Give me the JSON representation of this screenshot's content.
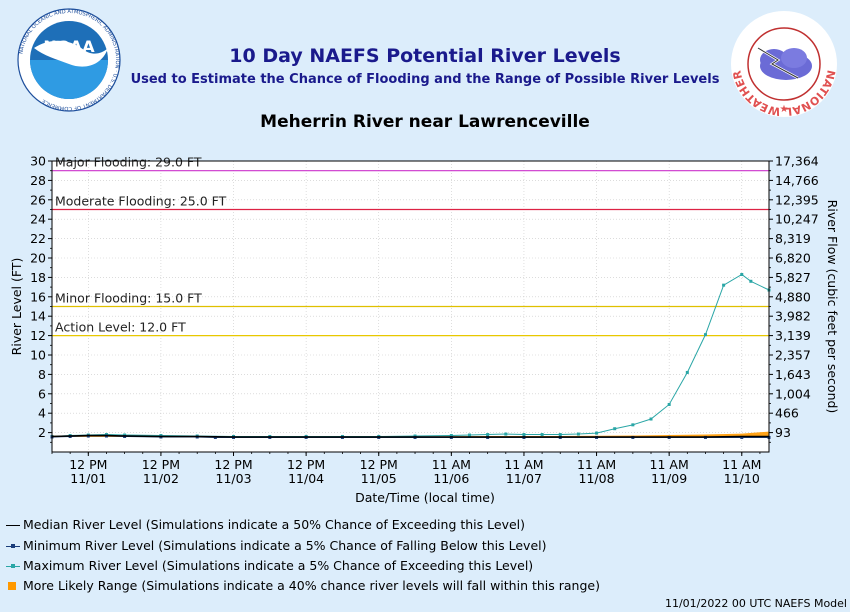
{
  "header": {
    "title": "10 Day NAEFS Potential River Levels",
    "subtitle": "Used to Estimate the Chance of Flooding and the Range of Possible River Levels",
    "gauge": "Meherrin River near Lawrenceville"
  },
  "logos": {
    "noaa": {
      "text": "NOAA",
      "ring_text": "NATIONAL OCEANIC AND ATMOSPHERIC ADMINISTRATION · U.S. DEPARTMENT OF COMMERCE"
    },
    "nws": {
      "ring_text": "NATIONAL WEATHER SERVICE"
    }
  },
  "footer": "11/01/2022 00 UTC NAEFS Model",
  "chart_data": {
    "type": "line",
    "xlabel": "Date/Time (local time)",
    "ylabel": "River Level (FT)",
    "y2label": "River Flow (cubic feet per second)",
    "ylim": [
      0,
      30
    ],
    "yticks": [
      2,
      4,
      6,
      8,
      10,
      12,
      14,
      16,
      18,
      20,
      22,
      24,
      26,
      28,
      30
    ],
    "flow_ticks": [
      "93",
      "466",
      "1,004",
      "1,643",
      "2,357",
      "3,139",
      "3,982",
      "4,880",
      "5,827",
      "6,820",
      "8,319",
      "10,247",
      "12,395",
      "14,766",
      "17,364"
    ],
    "xlim": [
      0.0,
      9.875
    ],
    "xticks": [
      {
        "x": 0.5,
        "line1": "12 PM",
        "line2": "11/01"
      },
      {
        "x": 1.5,
        "line1": "12 PM",
        "line2": "11/02"
      },
      {
        "x": 2.5,
        "line1": "12 PM",
        "line2": "11/03"
      },
      {
        "x": 3.5,
        "line1": "12 PM",
        "line2": "11/04"
      },
      {
        "x": 4.5,
        "line1": "12 PM",
        "line2": "11/05"
      },
      {
        "x": 5.5,
        "line1": "11 AM",
        "line2": "11/06"
      },
      {
        "x": 6.5,
        "line1": "11 AM",
        "line2": "11/07"
      },
      {
        "x": 7.5,
        "line1": "11 AM",
        "line2": "11/08"
      },
      {
        "x": 8.5,
        "line1": "11 AM",
        "line2": "11/09"
      },
      {
        "x": 9.5,
        "line1": "11 AM",
        "line2": "11/10"
      }
    ],
    "thresholds": [
      {
        "label": "Major Flooding: 29.0 FT",
        "value": 29.0,
        "color": "#cc33cc"
      },
      {
        "label": "Moderate Flooding: 25.0 FT",
        "value": 25.0,
        "color": "#dd2244"
      },
      {
        "label": "Minor Flooding: 15.0 FT",
        "value": 15.0,
        "color": "#e0c000"
      },
      {
        "label": "Action Level: 12.0 FT",
        "value": 12.0,
        "color": "#e8c800"
      }
    ],
    "series": [
      {
        "name": "Median River Level (Simulations indicate a 50% Chance of Exceeding this Level)",
        "color": "#000000",
        "marker": "none",
        "x": [
          0,
          0.25,
          0.5,
          0.75,
          1.0,
          1.5,
          2.0,
          2.5,
          3.0,
          3.5,
          4.0,
          4.5,
          5.0,
          5.5,
          6.0,
          6.5,
          7.0,
          7.5,
          8.0,
          8.5,
          9.0,
          9.5,
          9.875
        ],
        "values": [
          1.6,
          1.65,
          1.7,
          1.7,
          1.65,
          1.6,
          1.6,
          1.55,
          1.55,
          1.55,
          1.55,
          1.55,
          1.55,
          1.55,
          1.55,
          1.55,
          1.55,
          1.55,
          1.55,
          1.55,
          1.55,
          1.6,
          1.6
        ]
      },
      {
        "name": "Minimum River Level (Simulations indicate a 5% Chance of Falling Below this Level)",
        "color": "#1a3d7a",
        "marker": "square",
        "x": [
          0,
          0.25,
          0.5,
          0.75,
          1.0,
          1.5,
          2.0,
          2.25,
          2.5,
          3.0,
          3.5,
          4.0,
          4.5,
          5.0,
          5.5,
          6.0,
          6.5,
          7.0,
          7.5,
          8.0,
          8.5,
          9.0,
          9.5,
          9.875
        ],
        "values": [
          1.55,
          1.6,
          1.65,
          1.65,
          1.6,
          1.55,
          1.55,
          1.5,
          1.5,
          1.5,
          1.5,
          1.5,
          1.5,
          1.5,
          1.5,
          1.5,
          1.5,
          1.5,
          1.5,
          1.5,
          1.5,
          1.5,
          1.5,
          1.5
        ]
      },
      {
        "name": "Maximum River Level (Simulations indicate a 5% Chance of Exceeding this Level)",
        "color": "#2aa6a6",
        "marker": "square",
        "x": [
          0,
          0.25,
          0.5,
          0.75,
          1.0,
          1.5,
          2.0,
          2.5,
          3.0,
          3.5,
          4.0,
          4.5,
          5.0,
          5.5,
          5.75,
          6.0,
          6.25,
          6.5,
          6.75,
          7.0,
          7.25,
          7.5,
          7.75,
          8.0,
          8.25,
          8.5,
          8.75,
          9.0,
          9.25,
          9.5,
          9.625,
          9.875
        ],
        "values": [
          1.6,
          1.7,
          1.75,
          1.8,
          1.75,
          1.7,
          1.65,
          1.6,
          1.6,
          1.6,
          1.6,
          1.6,
          1.65,
          1.7,
          1.75,
          1.8,
          1.85,
          1.8,
          1.8,
          1.8,
          1.85,
          1.95,
          2.4,
          2.8,
          3.4,
          4.9,
          8.2,
          12.1,
          17.2,
          18.3,
          17.6,
          16.7
        ]
      },
      {
        "name": "More Likely Range (Simulations indicate a 40% chance river levels will fall within this range)",
        "color": "#ff9900",
        "marker": "square-fill",
        "x": [
          0,
          1,
          2,
          3,
          4,
          5,
          6,
          7,
          8,
          8.5,
          9.0,
          9.5,
          9.875
        ],
        "low": [
          1.55,
          1.55,
          1.55,
          1.5,
          1.5,
          1.5,
          1.5,
          1.5,
          1.5,
          1.5,
          1.5,
          1.55,
          1.55
        ],
        "high": [
          1.7,
          1.7,
          1.65,
          1.6,
          1.6,
          1.6,
          1.65,
          1.65,
          1.7,
          1.75,
          1.8,
          1.9,
          2.1
        ]
      }
    ]
  }
}
